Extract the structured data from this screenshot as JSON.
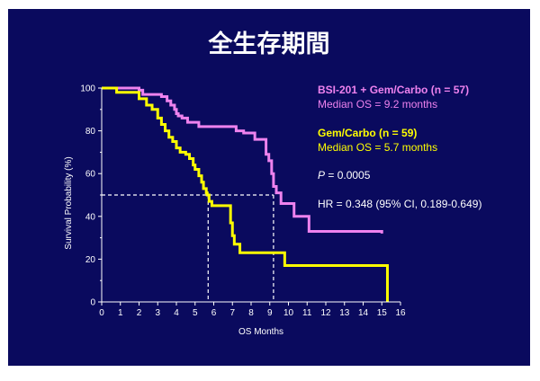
{
  "chart_data": {
    "type": "line",
    "step": true,
    "title": "全生存期間",
    "xlabel": "OS Months",
    "ylabel": "Survival Probability (%)",
    "xlim": [
      0,
      16
    ],
    "ylim": [
      0,
      100
    ],
    "xticks": [
      "0",
      "1",
      "2",
      "3",
      "4",
      "5",
      "6",
      "7",
      "8",
      "9",
      "10",
      "11",
      "12",
      "13",
      "14",
      "15",
      "16"
    ],
    "yticks": [
      "0",
      "20",
      "40",
      "60",
      "80",
      "100"
    ],
    "grid": false,
    "background": "#0a0a5e",
    "series": [
      {
        "name": "BSI-201 + Gem/Carbo (n = 57)",
        "color": "#ee82ee",
        "x": [
          0,
          1.0,
          2.0,
          2.2,
          3.2,
          3.5,
          3.7,
          3.9,
          4.0,
          4.1,
          4.3,
          4.6,
          5.2,
          7.2,
          7.6,
          8.2,
          8.8,
          8.95,
          9.1,
          9.2,
          9.35,
          9.6,
          10.3,
          11.1,
          15.0
        ],
        "y": [
          100,
          100,
          99,
          97,
          96,
          94,
          92,
          90,
          88,
          87,
          86,
          84,
          82,
          80,
          79,
          76,
          69,
          66,
          60,
          54,
          51,
          46,
          40,
          33,
          32
        ]
      },
      {
        "name": "Gem/Carbo (n = 59)",
        "color": "#ffff00",
        "x": [
          0,
          0.8,
          2.0,
          2.4,
          2.7,
          3.0,
          3.2,
          3.4,
          3.6,
          3.8,
          4.0,
          4.2,
          4.5,
          4.7,
          4.9,
          5.0,
          5.2,
          5.35,
          5.45,
          5.6,
          5.65,
          5.75,
          5.9,
          6.9,
          7.0,
          7.1,
          7.4,
          9.8,
          15.3
        ],
        "y": [
          100,
          98,
          95,
          92,
          90,
          86,
          83,
          80,
          77,
          75,
          72,
          70,
          69,
          67,
          64,
          62,
          59,
          56,
          53,
          51,
          50,
          47,
          45,
          37,
          31,
          27,
          23,
          17,
          0
        ]
      }
    ],
    "median_lines": [
      {
        "x": 5.7,
        "y": 50,
        "color": "#ffffff",
        "style": "dashed"
      },
      {
        "x": 9.2,
        "y": 50,
        "color": "#ffffff",
        "style": "dashed"
      }
    ],
    "annotations": [
      {
        "text": "BSI-201 + Gem/Carbo (n = 57)",
        "color": "#ee82ee",
        "bold": true
      },
      {
        "text": "Median OS = 9.2 months",
        "color": "#ee82ee",
        "bold": false
      },
      {
        "text": "Gem/Carbo (n = 59)",
        "color": "#ffff00",
        "bold": true
      },
      {
        "text": "Median OS = 5.7 months",
        "color": "#ffff00",
        "bold": false
      },
      {
        "text": "P = 0.0005",
        "color": "#ffffff",
        "bold": false
      },
      {
        "text": "HR = 0.348 (95% CI, 0.189-0.649)",
        "color": "#ffffff",
        "bold": false
      }
    ],
    "legend_placement": "right"
  }
}
